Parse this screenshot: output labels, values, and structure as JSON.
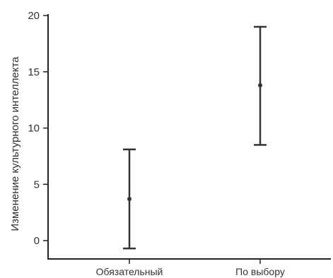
{
  "chart_data": {
    "type": "errorbar",
    "ylabel": "Изменение культурного интеллекта",
    "xlabel": "",
    "ylim": [
      -1.5,
      20
    ],
    "yticks": [
      0,
      5,
      10,
      15,
      20
    ],
    "categories": [
      "Обязательный",
      "По выбору"
    ],
    "series": [
      {
        "points": [
          {
            "category": "Обязательный",
            "mean": 3.7,
            "lower": -0.7,
            "upper": 8.1
          },
          {
            "category": "По выбору",
            "mean": 13.8,
            "lower": 8.5,
            "upper": 19.0
          }
        ]
      }
    ],
    "grid": false,
    "colors": {
      "marks": "#333333",
      "axis": "#222222",
      "text": "#333333"
    }
  }
}
